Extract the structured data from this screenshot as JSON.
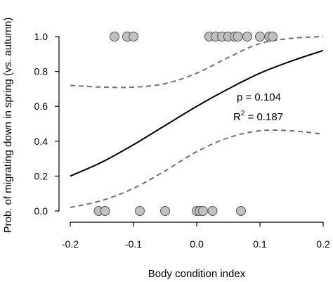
{
  "chart_data": {
    "type": "scatter",
    "xlabel": "Body condition index",
    "ylabel": "Prob. of migrating down in spring (vs. autumn)",
    "xlim": [
      -0.2,
      0.2
    ],
    "ylim": [
      0,
      1
    ],
    "xticks": [
      -0.2,
      -0.1,
      0.0,
      0.1,
      0.2
    ],
    "xtick_labels": [
      "-0.2",
      "-0.1",
      "0.0",
      "0.1",
      "0.2"
    ],
    "yticks": [
      0,
      0.2,
      0.4,
      0.6,
      0.8,
      1.0
    ],
    "ytick_labels": [
      "0.0",
      "0.2",
      "0.4",
      "0.6",
      "0.8",
      "1.0"
    ],
    "grid": false,
    "points": {
      "color": "#c0c0c0",
      "y1_x": [
        -0.13,
        -0.11,
        -0.1,
        0.02,
        0.03,
        0.04,
        0.05,
        0.06,
        0.065,
        0.08,
        0.1,
        0.115,
        0.12
      ],
      "y0_x": [
        -0.155,
        -0.145,
        -0.09,
        -0.05,
        0.0,
        0.005,
        0.01,
        0.025,
        0.07
      ]
    },
    "fit": {
      "color": "#000000",
      "x": [
        -0.2,
        -0.15,
        -0.1,
        -0.05,
        0.0,
        0.05,
        0.1,
        0.15,
        0.2
      ],
      "y": [
        0.2,
        0.28,
        0.38,
        0.49,
        0.6,
        0.7,
        0.79,
        0.86,
        0.92
      ]
    },
    "ci_upper": {
      "color": "#707070",
      "x": [
        -0.2,
        -0.15,
        -0.1,
        -0.05,
        0.0,
        0.05,
        0.1,
        0.15,
        0.2
      ],
      "y": [
        0.72,
        0.71,
        0.71,
        0.73,
        0.79,
        0.88,
        0.96,
        0.99,
        1.0
      ]
    },
    "ci_lower": {
      "color": "#707070",
      "x": [
        -0.2,
        -0.15,
        -0.1,
        -0.05,
        0.0,
        0.05,
        0.1,
        0.15,
        0.2
      ],
      "y": [
        0.02,
        0.06,
        0.13,
        0.23,
        0.34,
        0.42,
        0.46,
        0.46,
        0.44
      ]
    },
    "annotations": {
      "p_text": "p = 0.104",
      "r2_prefix": "R",
      "r2_sup": "2",
      "r2_value": " = 0.187"
    }
  }
}
